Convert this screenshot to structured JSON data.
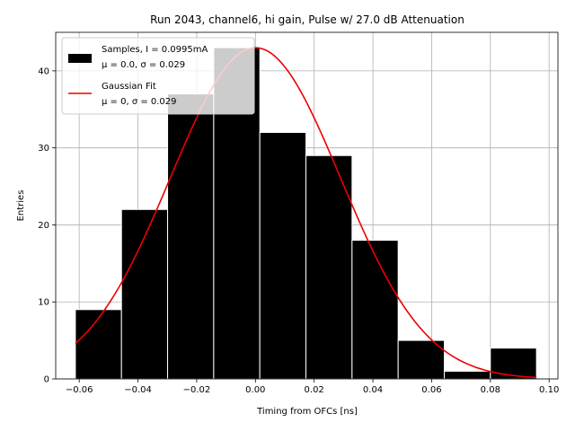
{
  "chart_data": {
    "type": "bar",
    "title": "Run 2043, channel6, hi gain, Pulse w/ 27.0 dB Attenuation",
    "xlabel": "Timing from OFCs [ns]",
    "ylabel": "Entries",
    "xlim": [
      -0.068,
      0.103
    ],
    "ylim": [
      0,
      45
    ],
    "xticks": [
      -0.06,
      -0.04,
      -0.02,
      0.0,
      0.02,
      0.04,
      0.06,
      0.08,
      0.1
    ],
    "xtick_labels": [
      "−0.06",
      "−0.04",
      "−0.02",
      "0.00",
      "0.02",
      "0.04",
      "0.06",
      "0.08",
      "0.10"
    ],
    "yticks": [
      0,
      10,
      20,
      30,
      40
    ],
    "ytick_labels": [
      "0",
      "10",
      "20",
      "30",
      "40"
    ],
    "grid": true,
    "histogram": {
      "bin_edges": [
        -0.0613,
        -0.0456,
        -0.0299,
        -0.0142,
        0.0015,
        0.0172,
        0.0329,
        0.0486,
        0.0643,
        0.08,
        0.0957
      ],
      "counts": [
        9,
        22,
        37,
        43,
        32,
        29,
        18,
        5,
        1,
        4
      ],
      "color": "#000000"
    },
    "fit": {
      "type": "gaussian",
      "amplitude": 43,
      "mean": 0.0,
      "sigma": 0.029,
      "x_range": [
        -0.0613,
        0.0957
      ],
      "color": "#ee0000"
    },
    "legend": {
      "position": "upper-left",
      "entries": [
        {
          "label_line1": "Samples, I = 0.0995mA",
          "label_line2": "μ = 0.0, σ = 0.029",
          "marker": "patch",
          "color": "#000000"
        },
        {
          "label_line1": "Gaussian Fit",
          "label_line2": "μ = 0, σ = 0.029",
          "marker": "line",
          "color": "#ee0000"
        }
      ]
    }
  }
}
